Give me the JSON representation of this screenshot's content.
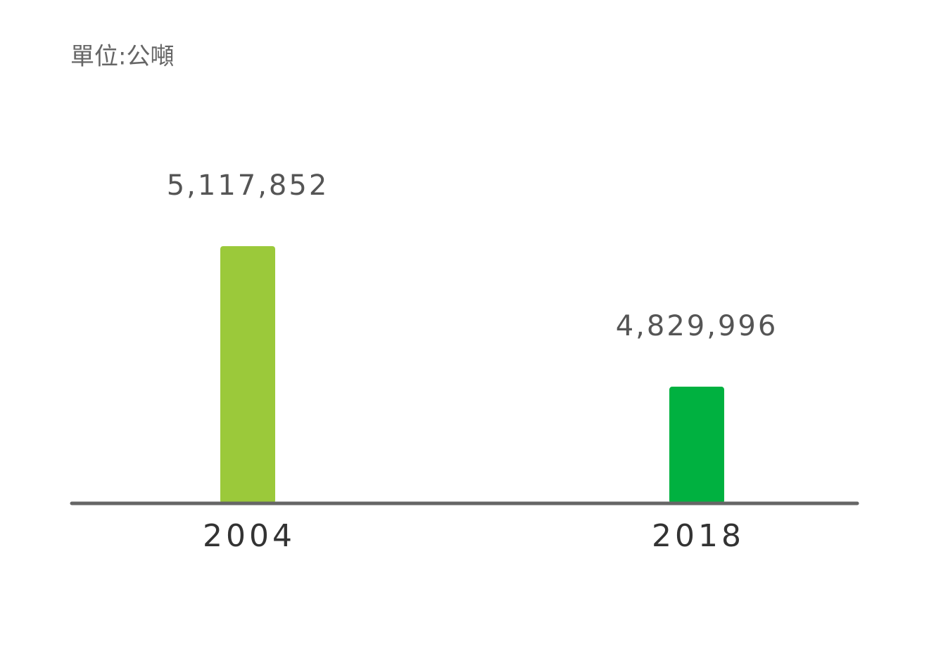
{
  "chart_data": {
    "type": "bar",
    "subtitle": "單位:公噸",
    "categories": [
      "2004",
      "2018"
    ],
    "values": [
      5117852,
      4829996
    ],
    "value_labels": [
      "5,117,852",
      "4,829,996"
    ],
    "colors": [
      "#9bc93a",
      "#00b140"
    ],
    "ylim": [
      4591000,
      5262000
    ]
  }
}
